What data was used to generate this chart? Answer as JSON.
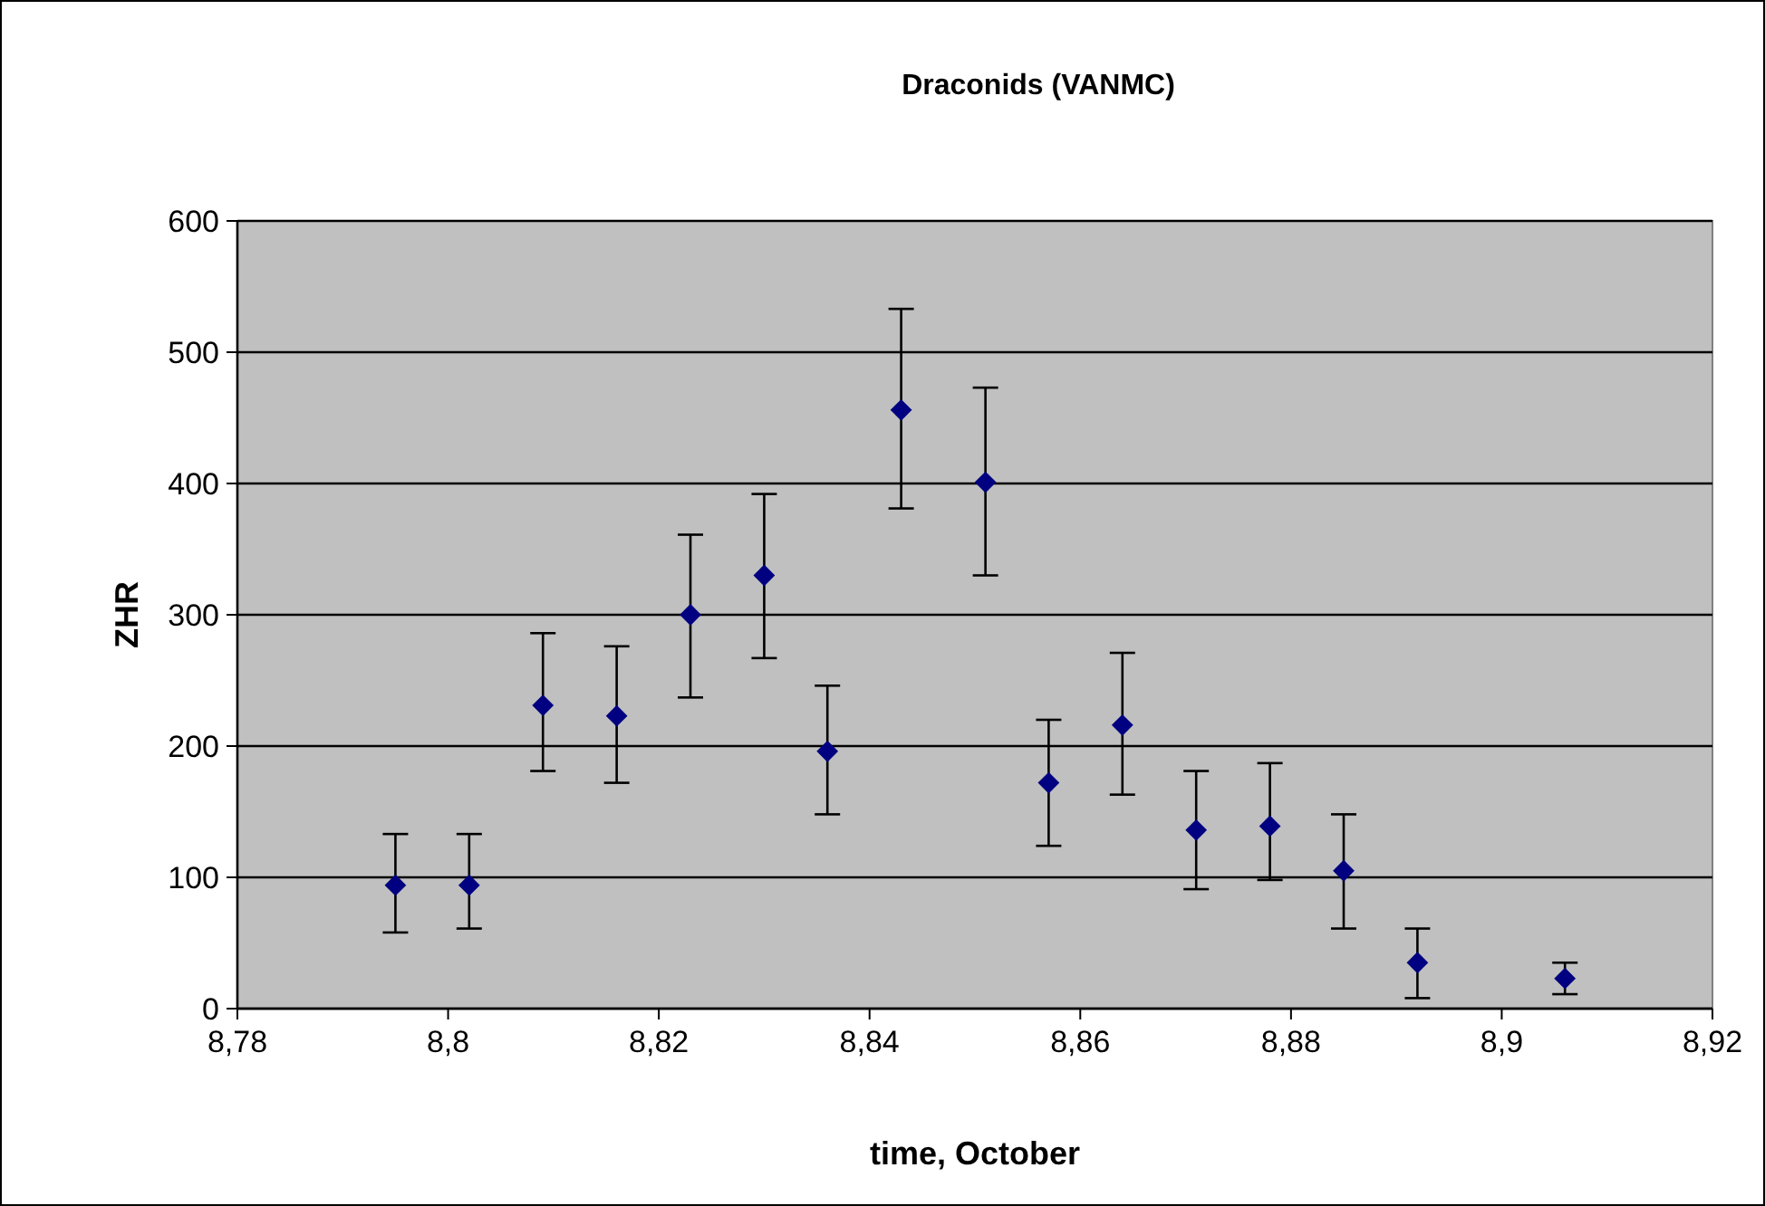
{
  "chart_data": {
    "type": "scatter",
    "title": "Draconids (VANMC)",
    "xlabel": "time, October",
    "ylabel": "ZHR",
    "x": [
      8.795,
      8.802,
      8.809,
      8.816,
      8.823,
      8.83,
      8.836,
      8.843,
      8.851,
      8.857,
      8.864,
      8.871,
      8.878,
      8.885,
      8.892,
      8.906
    ],
    "series": [
      {
        "color": "#000080",
        "values": [
          94,
          94,
          231,
          223,
          300,
          330,
          196,
          456,
          401,
          172,
          216,
          136,
          139,
          105,
          35,
          23
        ],
        "errors": [
          [
            58,
            133
          ],
          [
            61,
            133
          ],
          [
            181,
            286
          ],
          [
            172,
            276
          ],
          [
            237,
            361
          ],
          [
            267,
            392
          ],
          [
            148,
            246
          ],
          [
            381,
            533
          ],
          [
            330,
            473
          ],
          [
            124,
            220
          ],
          [
            163,
            271
          ],
          [
            91,
            181
          ],
          [
            98,
            187
          ],
          [
            61,
            148
          ],
          [
            8,
            61
          ],
          [
            11,
            35
          ]
        ]
      }
    ],
    "xlim": [
      8.78,
      8.92
    ],
    "xticks": [
      {
        "value": 8.78,
        "label": "8,78"
      },
      {
        "value": 8.8,
        "label": "8,8"
      },
      {
        "value": 8.82,
        "label": "8,82"
      },
      {
        "value": 8.84,
        "label": "8,84"
      },
      {
        "value": 8.86,
        "label": "8,86"
      },
      {
        "value": 8.88,
        "label": "8,88"
      },
      {
        "value": 8.9,
        "label": "8,9"
      },
      {
        "value": 8.92,
        "label": "8,92"
      }
    ],
    "ylim": [
      0,
      600
    ],
    "yticks": [
      0,
      100,
      200,
      300,
      400,
      500,
      600
    ],
    "grid": "y",
    "marker": "diamond"
  }
}
